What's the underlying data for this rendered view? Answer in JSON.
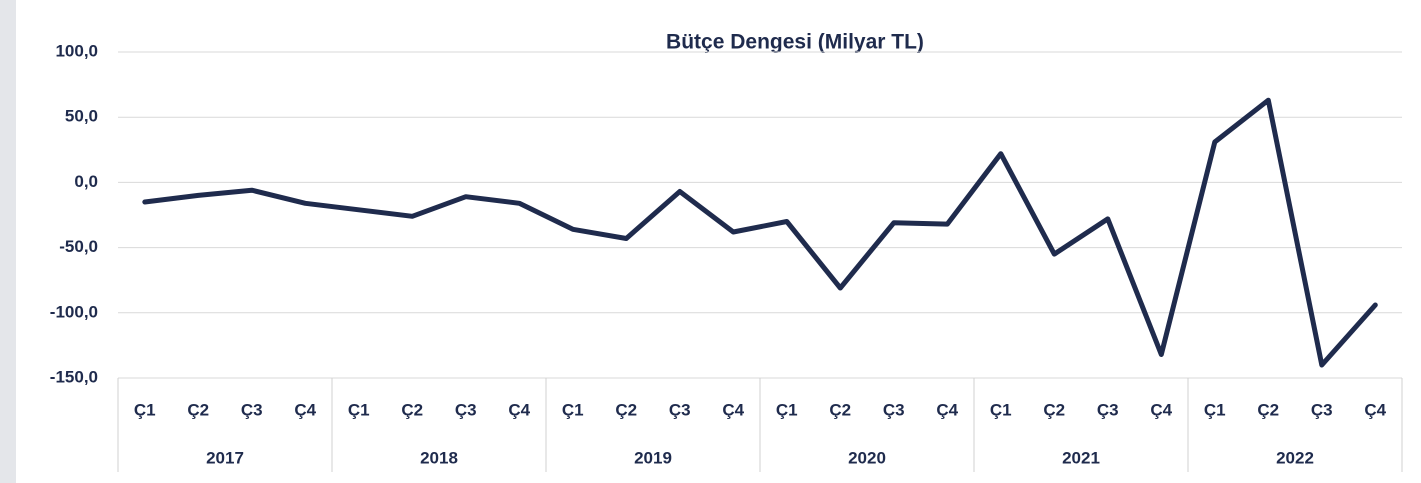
{
  "chart_data": {
    "type": "line",
    "title": "Bütçe Dengesi (Milyar TL)",
    "categories": [
      "Ç1",
      "Ç2",
      "Ç3",
      "Ç4",
      "Ç1",
      "Ç2",
      "Ç3",
      "Ç4",
      "Ç1",
      "Ç2",
      "Ç3",
      "Ç4",
      "Ç1",
      "Ç2",
      "Ç3",
      "Ç4",
      "Ç1",
      "Ç2",
      "Ç3",
      "Ç4",
      "Ç1",
      "Ç2",
      "Ç3",
      "Ç4"
    ],
    "years": [
      "2017",
      "2018",
      "2019",
      "2020",
      "2021",
      "2022"
    ],
    "values": [
      -15,
      -10,
      -6,
      -16,
      -21,
      -26,
      -11,
      -16,
      -36,
      -43,
      -7,
      -38,
      -30,
      -81,
      -31,
      -32,
      22,
      -55,
      -28,
      -132,
      31,
      63,
      -140,
      -94
    ],
    "color": "#1f2b4d",
    "ylim": [
      -150,
      100
    ],
    "yticks": [
      {
        "value": -150,
        "label": "-150,0"
      },
      {
        "value": -100,
        "label": "-100,0"
      },
      {
        "value": -50,
        "label": "-50,0"
      },
      {
        "value": 0,
        "label": "0,0"
      },
      {
        "value": 50,
        "label": "50,0"
      },
      {
        "value": 100,
        "label": "100,0"
      }
    ],
    "grid": true
  }
}
